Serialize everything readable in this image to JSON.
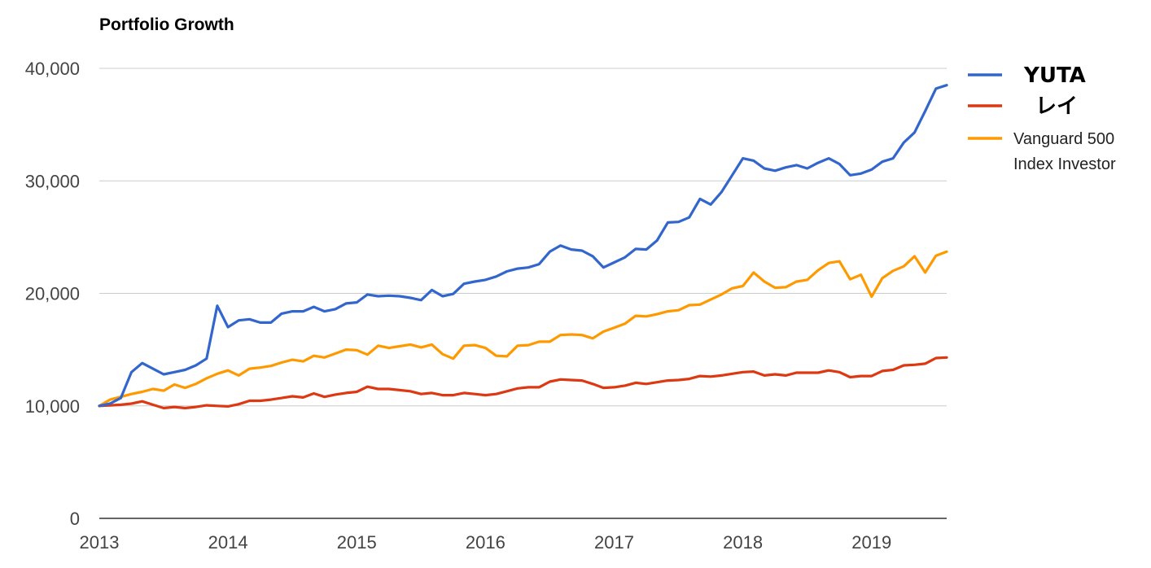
{
  "chart_data": {
    "type": "line",
    "title": "Portfolio Growth",
    "xlabel": "",
    "ylabel": "",
    "x_start": "2013-01",
    "x_step": "month",
    "xlim": [
      "2013-01",
      "2019-08"
    ],
    "ylim": [
      0,
      40000
    ],
    "x_ticks": [
      "2013",
      "2014",
      "2015",
      "2016",
      "2017",
      "2018",
      "2019"
    ],
    "y_ticks": [
      "0",
      "10,000",
      "20,000",
      "30,000",
      "40,000"
    ],
    "grid": true,
    "legend_position": "right",
    "series": [
      {
        "name": "YUTA",
        "color": "#3366cc",
        "values": [
          10000,
          10200,
          10700,
          13000,
          13800,
          13300,
          12800,
          13000,
          13200,
          13600,
          14200,
          18900,
          17000,
          17600,
          17700,
          17400,
          17400,
          18200,
          18400,
          18400,
          18800,
          18400,
          18600,
          19100,
          19200,
          19900,
          19750,
          19800,
          19750,
          19600,
          19400,
          20300,
          19750,
          19950,
          20850,
          21050,
          21200,
          21500,
          21950,
          22200,
          22300,
          22600,
          23700,
          24250,
          23900,
          23800,
          23300,
          22300,
          22750,
          23200,
          23950,
          23900,
          24700,
          26300,
          26350,
          26750,
          28400,
          27900,
          29000,
          30500,
          32000,
          31800,
          31100,
          30900,
          31200,
          31400,
          31100,
          31600,
          32000,
          31500,
          30500,
          30650,
          31000,
          31700,
          32000,
          33400,
          34300,
          36200,
          38200,
          38500
        ]
      },
      {
        "name": "レイ",
        "color": "#dc3912",
        "values": [
          10000,
          10050,
          10100,
          10200,
          10400,
          10100,
          9800,
          9900,
          9800,
          9900,
          10050,
          10000,
          9950,
          10150,
          10450,
          10450,
          10550,
          10700,
          10850,
          10750,
          11100,
          10800,
          11000,
          11150,
          11250,
          11700,
          11500,
          11500,
          11400,
          11300,
          11050,
          11150,
          10950,
          10950,
          11150,
          11050,
          10950,
          11050,
          11300,
          11550,
          11650,
          11650,
          12150,
          12350,
          12300,
          12250,
          11950,
          11600,
          11650,
          11800,
          12050,
          11950,
          12100,
          12250,
          12300,
          12400,
          12650,
          12600,
          12700,
          12850,
          13000,
          13050,
          12700,
          12800,
          12700,
          12950,
          12950,
          12950,
          13150,
          13000,
          12550,
          12650,
          12650,
          13100,
          13200,
          13600,
          13650,
          13750,
          14250,
          14300
        ]
      },
      {
        "name": "Vanguard 500 Index Investor",
        "label_lines": [
          "Vanguard 500",
          "Index Investor"
        ],
        "color": "#ff9900",
        "values": [
          10000,
          10550,
          10800,
          11050,
          11250,
          11500,
          11350,
          11900,
          11600,
          11950,
          12450,
          12850,
          13150,
          12700,
          13300,
          13400,
          13550,
          13850,
          14100,
          13950,
          14450,
          14300,
          14650,
          15000,
          14950,
          14550,
          15350,
          15150,
          15300,
          15450,
          15200,
          15450,
          14600,
          14200,
          15350,
          15400,
          15150,
          14450,
          14400,
          15350,
          15400,
          15700,
          15700,
          16300,
          16350,
          16300,
          16000,
          16600,
          16950,
          17300,
          18000,
          17950,
          18150,
          18400,
          18500,
          18950,
          19000,
          19450,
          19900,
          20450,
          20650,
          21850,
          21050,
          20500,
          20550,
          21050,
          21200,
          22050,
          22700,
          22850,
          21250,
          21650,
          19700,
          21350,
          22000,
          22400,
          23300,
          21850,
          23350,
          23700
        ]
      }
    ]
  }
}
